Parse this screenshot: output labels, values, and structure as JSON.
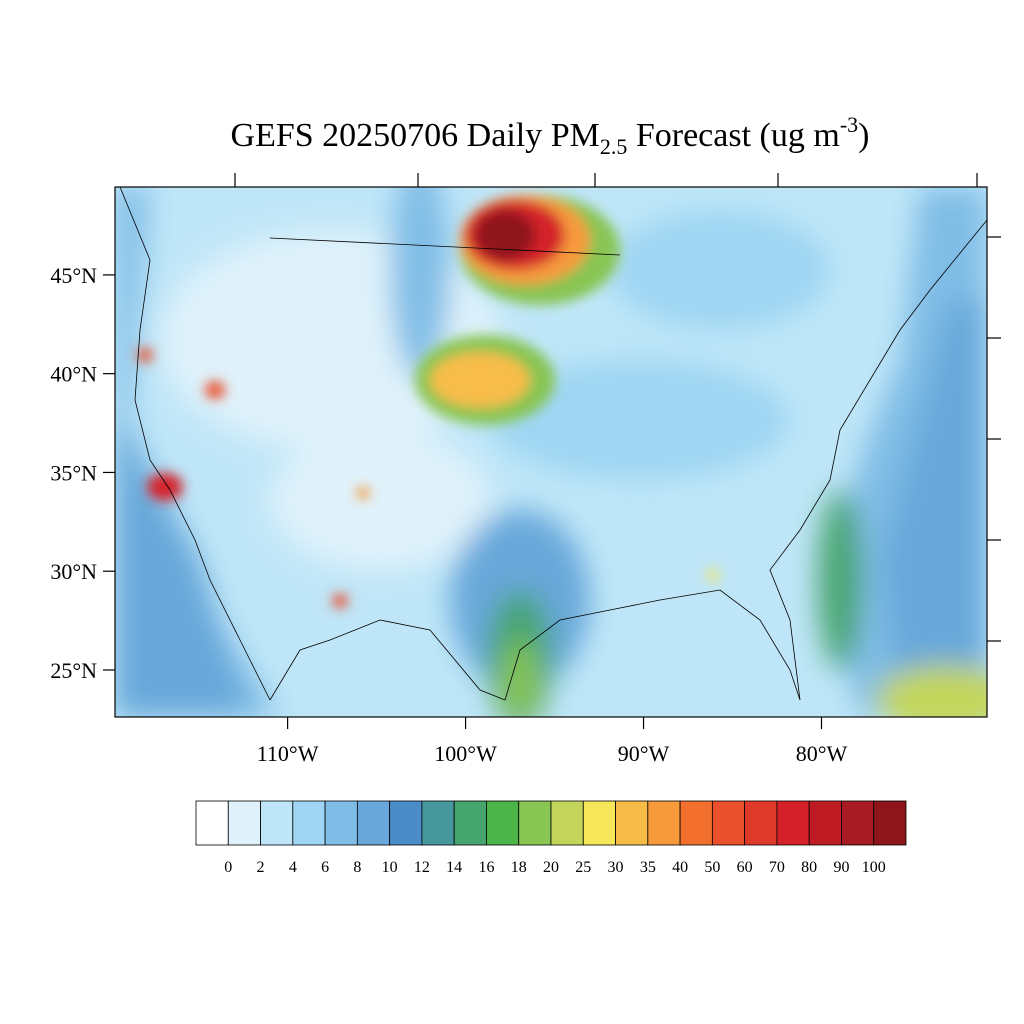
{
  "map": {
    "title": {
      "parts": [
        "GEFS 20250706 Daily PM",
        "2.5",
        " Forecast (ug m",
        "-3",
        ")"
      ]
    },
    "lat_range": [
      22.62,
      49.45
    ],
    "lon_range": [
      -119.7,
      -70.7
    ],
    "lat_ticks": [
      {
        "value": 45,
        "label": "45°N"
      },
      {
        "value": 40,
        "label": "40°N"
      },
      {
        "value": 35,
        "label": "35°N"
      },
      {
        "value": 30,
        "label": "30°N"
      },
      {
        "value": 25,
        "label": "25°N"
      }
    ],
    "lon_ticks": [
      {
        "value": -110,
        "label": "110°W"
      },
      {
        "value": -100,
        "label": "100°W"
      },
      {
        "value": -90,
        "label": "90°W"
      },
      {
        "value": -80,
        "label": "80°W"
      }
    ],
    "colorbar": {
      "levels": [
        0,
        2,
        4,
        6,
        8,
        10,
        12,
        14,
        16,
        18,
        20,
        25,
        30,
        35,
        40,
        50,
        60,
        70,
        80,
        90,
        100
      ],
      "colors": [
        "#ffffff",
        "#dff2fb",
        "#bfe6f8",
        "#9ed6f3",
        "#80bde6",
        "#68a8da",
        "#4a8cc8",
        "#46989c",
        "#46a46e",
        "#4cb54a",
        "#88c552",
        "#c3d55a",
        "#f5e65a",
        "#f7bc48",
        "#f79a3c",
        "#f26f2e",
        "#e9502c",
        "#df3a29",
        "#d42029",
        "#be1b25",
        "#a81b22",
        "#8e161a"
      ]
    }
  }
}
